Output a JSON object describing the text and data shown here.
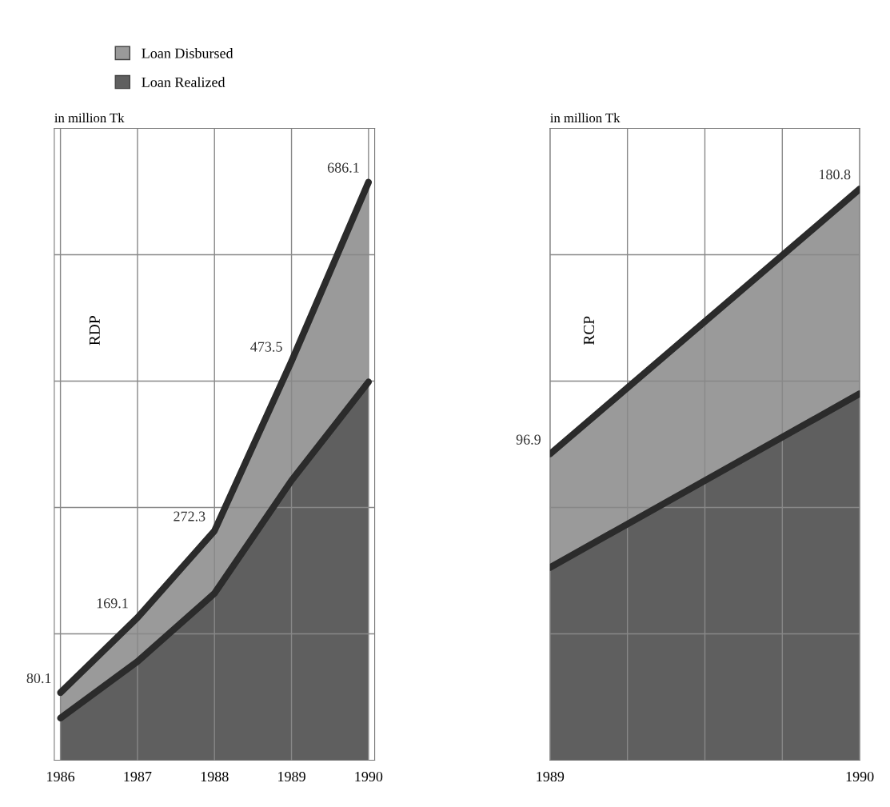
{
  "chart_data": [
    {
      "type": "area",
      "title": "RDP",
      "ylabel": "in million Tk",
      "grid": true,
      "legend": "top left",
      "tick_labels": "x",
      "categories": [
        "1986",
        "1987",
        "1988",
        "1989",
        "1990"
      ],
      "ylim": [
        0,
        750
      ],
      "yticks": [
        {
          "value": 150,
          "label": null
        },
        {
          "value": 300,
          "label": null
        },
        {
          "value": 450,
          "label": null
        },
        {
          "value": 600,
          "label": null
        }
      ],
      "series": [
        {
          "name": "Loan Disbursed",
          "color": "#9a9a9a",
          "values": [
            80.1,
            169.1,
            272.3,
            473.5,
            686.1
          ],
          "data_labels": true
        },
        {
          "name": "Loan Realized",
          "color": "#5f5f5f",
          "values": [
            50,
            117,
            198,
            332,
            449
          ]
        }
      ]
    },
    {
      "type": "area",
      "title": "RCP",
      "ylabel": "in million Tk",
      "grid": true,
      "tick_labels": "x",
      "x": [
        1989,
        1990
      ],
      "xlim": [
        1989,
        1990
      ],
      "xticks": [
        1989,
        {
          "value": 1989.25,
          "label": null
        },
        {
          "value": 1989.5,
          "label": null
        },
        {
          "value": 1989.75,
          "label": null
        },
        1990
      ],
      "ylim": [
        0,
        200
      ],
      "yticks": [
        {
          "value": 40,
          "label": null
        },
        {
          "value": 80,
          "label": null
        },
        {
          "value": 120,
          "label": null
        },
        {
          "value": 160,
          "label": null
        }
      ],
      "series": [
        {
          "color": "#9a9a9a",
          "values": [
            96.9,
            180.8
          ],
          "data_labels": true
        },
        {
          "color": "#5f5f5f",
          "values": [
            61,
            116
          ]
        }
      ]
    }
  ]
}
